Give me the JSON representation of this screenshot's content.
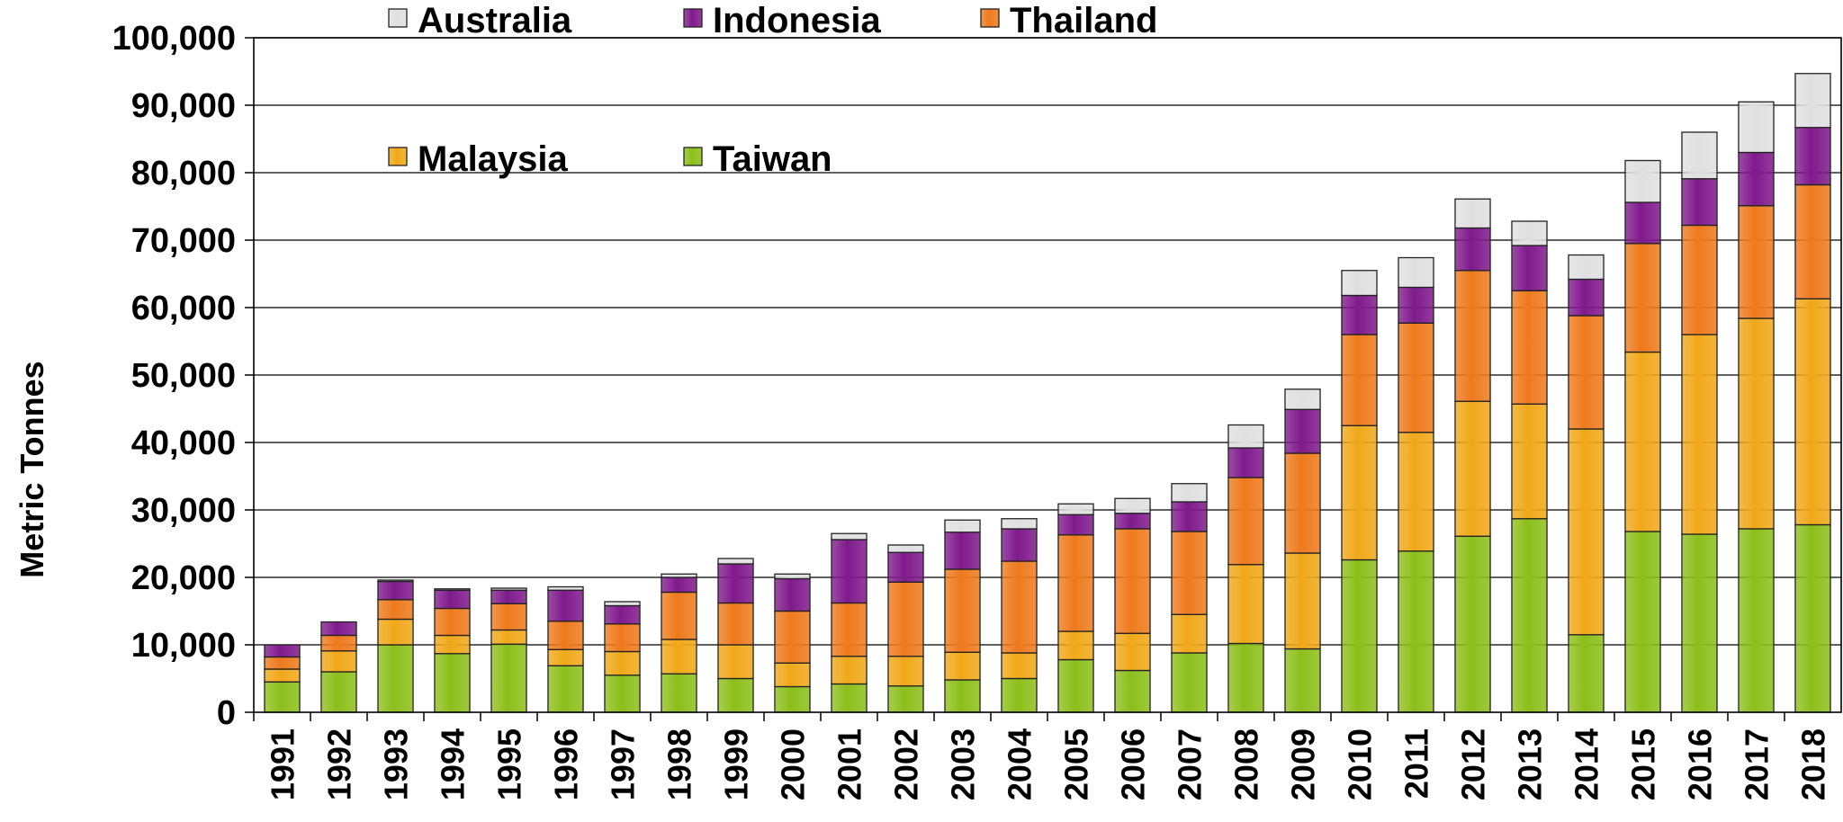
{
  "chart_data": {
    "type": "bar",
    "stacked": true,
    "ylabel": "Metric Tonnes",
    "xlabel": "",
    "ylim": [
      0,
      100000
    ],
    "yticks": [
      0,
      10000,
      20000,
      30000,
      40000,
      50000,
      60000,
      70000,
      80000,
      90000,
      100000
    ],
    "ytick_labels": [
      "0",
      "10,000",
      "20,000",
      "30,000",
      "40,000",
      "50,000",
      "60,000",
      "70,000",
      "80,000",
      "90,000",
      "100,000"
    ],
    "grid": "horizontal",
    "legend_position": "top-left",
    "categories": [
      "1991",
      "1992",
      "1993",
      "1994",
      "1995",
      "1996",
      "1997",
      "1998",
      "1999",
      "2000",
      "2001",
      "2002",
      "2003",
      "2004",
      "2005",
      "2006",
      "2007",
      "2008",
      "2009",
      "2010",
      "2011",
      "2012",
      "2013",
      "2014",
      "2015",
      "2016",
      "2017",
      "2018"
    ],
    "series": [
      {
        "name": "Taiwan",
        "color": "#8cbf1a",
        "values": [
          4500,
          6000,
          10000,
          8700,
          10100,
          6900,
          5500,
          5700,
          5000,
          3800,
          4200,
          3900,
          4800,
          5000,
          7800,
          6200,
          8800,
          10200,
          9400,
          22600,
          23900,
          26100,
          28700,
          11500,
          26800,
          26400,
          27200,
          27800
        ]
      },
      {
        "name": "Malaysia",
        "color": "#f0a818",
        "values": [
          1900,
          3100,
          3800,
          2700,
          2100,
          2400,
          3500,
          5100,
          5000,
          3500,
          4100,
          4400,
          4100,
          3800,
          4200,
          5500,
          5700,
          11700,
          14200,
          19900,
          17600,
          20000,
          17000,
          30500,
          26600,
          29600,
          31200,
          33500
        ]
      },
      {
        "name": "Thailand",
        "color": "#ee7a1c",
        "values": [
          1800,
          2300,
          2900,
          4000,
          3900,
          4200,
          4100,
          7000,
          6200,
          7700,
          7900,
          11000,
          12300,
          13600,
          14300,
          15500,
          12300,
          12900,
          14800,
          13500,
          16200,
          19400,
          16800,
          16800,
          16100,
          16200,
          16700,
          16900
        ]
      },
      {
        "name": "Indonesia",
        "color": "#801a8c",
        "values": [
          1800,
          2000,
          2700,
          2700,
          2000,
          4600,
          2700,
          2200,
          5800,
          4800,
          9400,
          4400,
          5500,
          4800,
          3000,
          2300,
          4400,
          4400,
          6500,
          5800,
          5300,
          6300,
          6700,
          5400,
          6100,
          6900,
          7900,
          8500
        ]
      },
      {
        "name": "Australia",
        "color": "#e0e0e0",
        "values": [
          0,
          0,
          200,
          200,
          300,
          500,
          600,
          500,
          800,
          700,
          900,
          1100,
          1800,
          1500,
          1600,
          2200,
          2700,
          3400,
          3000,
          3700,
          4400,
          4300,
          3600,
          3600,
          6200,
          6900,
          7500,
          8000
        ]
      }
    ],
    "legend_order": [
      "Australia",
      "Indonesia",
      "Thailand",
      "Malaysia",
      "Taiwan"
    ]
  }
}
